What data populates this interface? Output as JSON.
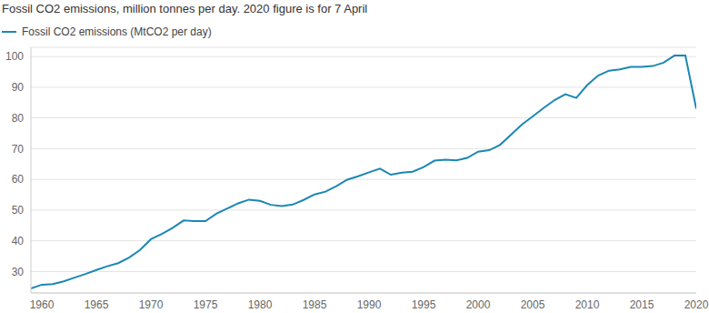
{
  "chart_data": {
    "type": "line",
    "title": "Fossil CO2 emissions, million tonnes per day. 2020 figure is for 7 April",
    "x": [
      1959,
      1960,
      1961,
      1962,
      1963,
      1964,
      1965,
      1966,
      1967,
      1968,
      1969,
      1970,
      1971,
      1972,
      1973,
      1974,
      1975,
      1976,
      1977,
      1978,
      1979,
      1980,
      1981,
      1982,
      1983,
      1984,
      1985,
      1986,
      1987,
      1988,
      1989,
      1990,
      1991,
      1992,
      1993,
      1994,
      1995,
      1996,
      1997,
      1998,
      1999,
      2000,
      2001,
      2002,
      2003,
      2004,
      2005,
      2006,
      2007,
      2008,
      2009,
      2010,
      2011,
      2012,
      2013,
      2014,
      2015,
      2016,
      2017,
      2018,
      2019,
      2020
    ],
    "series": [
      {
        "name": "Fossil CO2 emissions (MtCO2 per day)",
        "color": "#1b87b4",
        "values": [
          24.5,
          25.7,
          25.9,
          26.8,
          28.0,
          29.2,
          30.5,
          31.7,
          32.7,
          34.5,
          37.0,
          40.5,
          42.2,
          44.2,
          46.6,
          46.4,
          46.4,
          48.8,
          50.5,
          52.2,
          53.4,
          53.0,
          51.7,
          51.3,
          51.8,
          53.3,
          55.1,
          56.0,
          57.8,
          59.9,
          61.0,
          62.3,
          63.5,
          61.5,
          62.2,
          62.5,
          64.0,
          66.1,
          66.4,
          66.2,
          67.0,
          69.0,
          69.5,
          71.2,
          74.5,
          77.8,
          80.5,
          83.2,
          85.8,
          87.7,
          86.5,
          90.7,
          93.8,
          95.4,
          95.8,
          96.6,
          96.6,
          96.9,
          98.0,
          100.3,
          100.3,
          83.0
        ]
      }
    ],
    "xlim": [
      1959,
      2020
    ],
    "xticks": [
      1960,
      1965,
      1970,
      1975,
      1980,
      1985,
      1990,
      1995,
      2000,
      2005,
      2010,
      2015,
      2020
    ],
    "ylim": [
      23,
      103
    ],
    "yticks": [
      30,
      40,
      50,
      60,
      70,
      80,
      90,
      100
    ],
    "grid": true,
    "legend": "top left"
  }
}
